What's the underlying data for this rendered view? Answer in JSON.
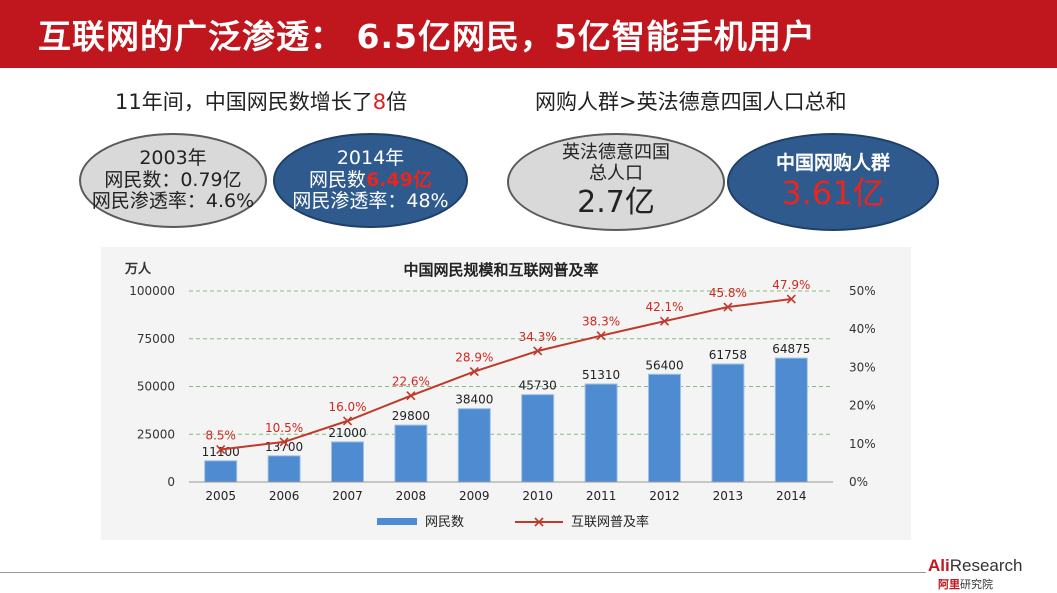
{
  "title": "互联网的广泛渗透： 6.5亿网民，5亿智能手机用户",
  "left_subtitle": {
    "prefix": "11年间，中国网民数增长了",
    "highlight": "8",
    "suffix": "倍"
  },
  "right_subtitle": "网购人群>英法德意四国人口总和",
  "bubbles": {
    "b2003": {
      "line1": "2003年",
      "line2": "网民数：0.79亿",
      "line3": "网民渗透率：4.6%"
    },
    "b2014": {
      "line1": "2014年",
      "line2_prefix": "网民数",
      "line2_value": "6.49亿",
      "line3": "网民渗透率：48%"
    },
    "eu": {
      "line1": "英法德意四国",
      "line2": "总人口",
      "value": "2.7亿"
    },
    "cn": {
      "line1": "中国网购人群",
      "value": "3.61亿"
    }
  },
  "colors": {
    "title_bg": "#c0161e",
    "bar": "#4f8bd1",
    "line": "#c0392b",
    "accent_red": "#e8261e",
    "blue_bubble": "#2f5a8e"
  },
  "chart_data": {
    "type": "bar+line",
    "title": "中国网民规模和互联网普及率",
    "ylabel_left": "万人",
    "categories": [
      "2005",
      "2006",
      "2007",
      "2008",
      "2009",
      "2010",
      "2011",
      "2012",
      "2013",
      "2014"
    ],
    "series": [
      {
        "name": "网民数",
        "type": "bar",
        "axis": "left",
        "values": [
          11100,
          13700,
          21000,
          29800,
          38400,
          45730,
          51310,
          56400,
          61758,
          64875
        ]
      },
      {
        "name": "互联网普及率",
        "type": "line",
        "axis": "right",
        "values": [
          8.5,
          10.5,
          16.0,
          22.6,
          28.9,
          34.3,
          38.3,
          42.1,
          45.8,
          47.9
        ],
        "labels": [
          "8.5%",
          "10.5%",
          "16.0%",
          "22.6%",
          "28.9%",
          "34.3%",
          "38.3%",
          "42.1%",
          "45.8%",
          "47.9%"
        ]
      }
    ],
    "ylim_left": [
      0,
      100000
    ],
    "yticks_left": [
      "0",
      "25000",
      "50000",
      "75000",
      "100000"
    ],
    "ylim_right": [
      0,
      50
    ],
    "yticks_right": [
      "0%",
      "10%",
      "20%",
      "30%",
      "40%",
      "50%"
    ],
    "grid": "horizontal dashed",
    "legend": "bottom"
  },
  "logo": {
    "brand_a": "Ali",
    "brand_b": "Research",
    "cn_a": "阿里",
    "cn_b": "研究院"
  }
}
